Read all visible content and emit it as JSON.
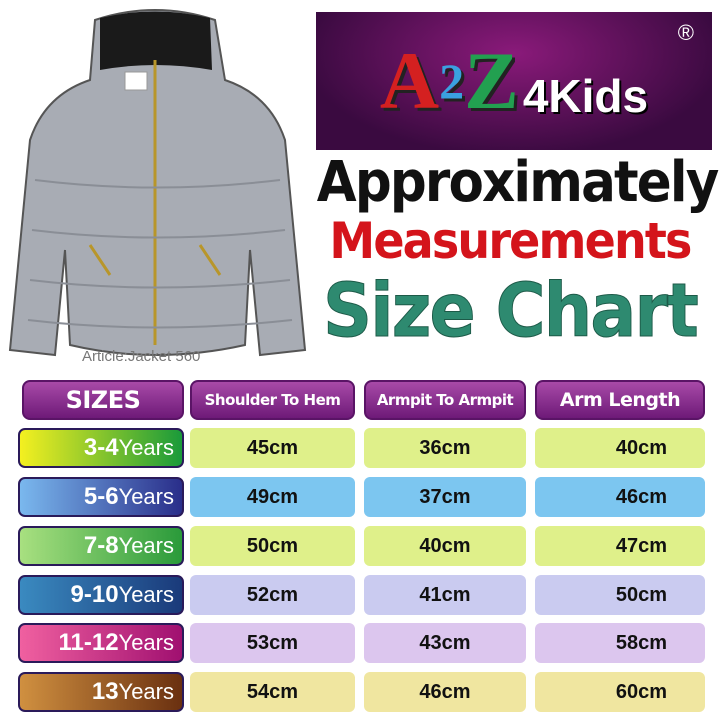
{
  "brand": {
    "logo_text": "A2Z4Kids",
    "registered": "®"
  },
  "article": "Article:Jacket 560",
  "headings": {
    "line1": "Approximately",
    "line2": "Measurements",
    "line3": "Size Chart"
  },
  "table": {
    "headers": [
      "SIZES",
      "Shoulder To Hem",
      "Armpit To Armpit",
      "Arm Length"
    ],
    "rows": [
      {
        "size": "3-4",
        "unit": "Years",
        "values": [
          "45cm",
          "36cm",
          "40cm"
        ]
      },
      {
        "size": "5-6",
        "unit": "Years",
        "values": [
          "49cm",
          "37cm",
          "46cm"
        ]
      },
      {
        "size": "7-8",
        "unit": "Years",
        "values": [
          "50cm",
          "40cm",
          "47cm"
        ]
      },
      {
        "size": "9-10",
        "unit": "Years",
        "values": [
          "52cm",
          "41cm",
          "50cm"
        ]
      },
      {
        "size": "11-12",
        "unit": "Years",
        "values": [
          "53cm",
          "43cm",
          "58cm"
        ]
      },
      {
        "size": "13",
        "unit": "Years",
        "values": [
          "54cm",
          "46cm",
          "60cm"
        ]
      }
    ]
  },
  "colors": {
    "row_bg": [
      "#dff08a",
      "#7cc6f0",
      "#dff08a",
      "#cacbf0",
      "#dcc6ee",
      "#f0e6a0"
    ],
    "size_bg": [
      "linear-gradient(90deg,#f4f020,#1a9a3a)",
      "linear-gradient(90deg,#7ab8ee,#2a2e8a)",
      "linear-gradient(90deg,#a8e080,#2a9a3a)",
      "linear-gradient(90deg,#3a8ac0,#1a3a7a)",
      "linear-gradient(90deg,#f060a0,#a01070)",
      "linear-gradient(90deg,#d09040,#6a3010)"
    ]
  }
}
